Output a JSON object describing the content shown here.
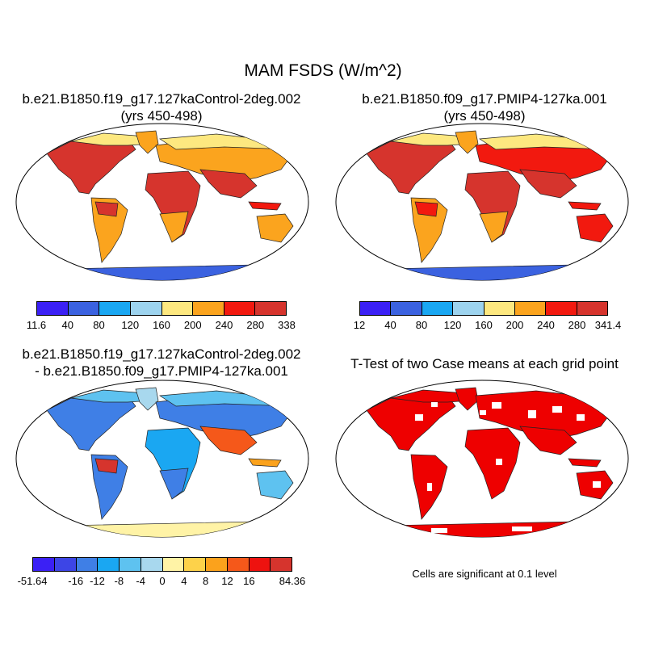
{
  "title": "MAM FSDS (W/m^2)",
  "panels": {
    "a": {
      "title_line1": "b.e21.B1850.f19_g17.127kaControl-2deg.002",
      "title_line2": "(yrs 450-498)"
    },
    "b": {
      "title_line1": "b.e21.B1850.f09_g17.PMIP4-127ka.001",
      "title_line2": "(yrs 450-498)"
    },
    "c": {
      "title_line1": "b.e21.B1850.f19_g17.127kaControl-2deg.002",
      "title_line2": "- b.e21.B1850.f09_g17.PMIP4-127ka.001"
    },
    "d": {
      "title_line1": "T-Test of two Case means at each grid point"
    }
  },
  "colorbars": {
    "a": {
      "labels": [
        "11.6",
        "40",
        "80",
        "120",
        "160",
        "200",
        "240",
        "280",
        "338"
      ],
      "colors": [
        "#3b20f5",
        "#3b62e0",
        "#1aa7f2",
        "#9dd3ee",
        "#fde880",
        "#fba41e",
        "#f2190f",
        "#d6342d"
      ]
    },
    "b": {
      "labels": [
        "12",
        "40",
        "80",
        "120",
        "160",
        "200",
        "240",
        "280",
        "341.4"
      ],
      "colors": [
        "#3b20f5",
        "#3b62e0",
        "#1aa7f2",
        "#9dd3ee",
        "#fde880",
        "#fba41e",
        "#f2190f",
        "#d6342d"
      ]
    },
    "c": {
      "labels": [
        "-51.64",
        "",
        "-16",
        "-12",
        "-8",
        "-4",
        "0",
        "4",
        "8",
        "12",
        "16",
        "",
        "84.36"
      ],
      "colors": [
        "#3b20f5",
        "#3d45e6",
        "#3f7fe6",
        "#1aa7f2",
        "#5ec2f0",
        "#a8d8ee",
        "#fff3a6",
        "#fdd24a",
        "#fba21c",
        "#f5581a",
        "#ee120f",
        "#d6342d"
      ]
    }
  },
  "note": "Cells are significant at 0.1 level"
}
